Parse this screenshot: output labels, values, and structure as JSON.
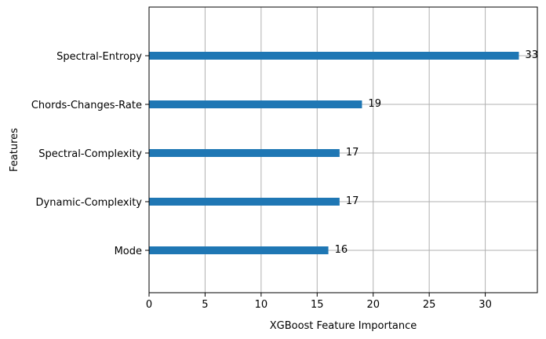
{
  "chart_data": {
    "type": "bar",
    "orientation": "horizontal",
    "categories": [
      "Mode",
      "Dynamic-Complexity",
      "Spectral-Complexity",
      "Chords-Changes-Rate",
      "Spectral-Entropy"
    ],
    "values": [
      16,
      17,
      17,
      19,
      33
    ],
    "data_labels": [
      "16",
      "17",
      "17",
      "19",
      "33"
    ],
    "xlabel": "XGBoost Feature Importance",
    "ylabel": "Features",
    "title": "",
    "xlim": [
      0,
      34.65
    ],
    "xticks": [
      0,
      5,
      10,
      15,
      20,
      25,
      30
    ],
    "xtick_labels": [
      "0",
      "5",
      "10",
      "15",
      "20",
      "25",
      "30"
    ],
    "grid": true,
    "bar_color": "#1f77b4",
    "grid_color": "#b0b0b0"
  }
}
